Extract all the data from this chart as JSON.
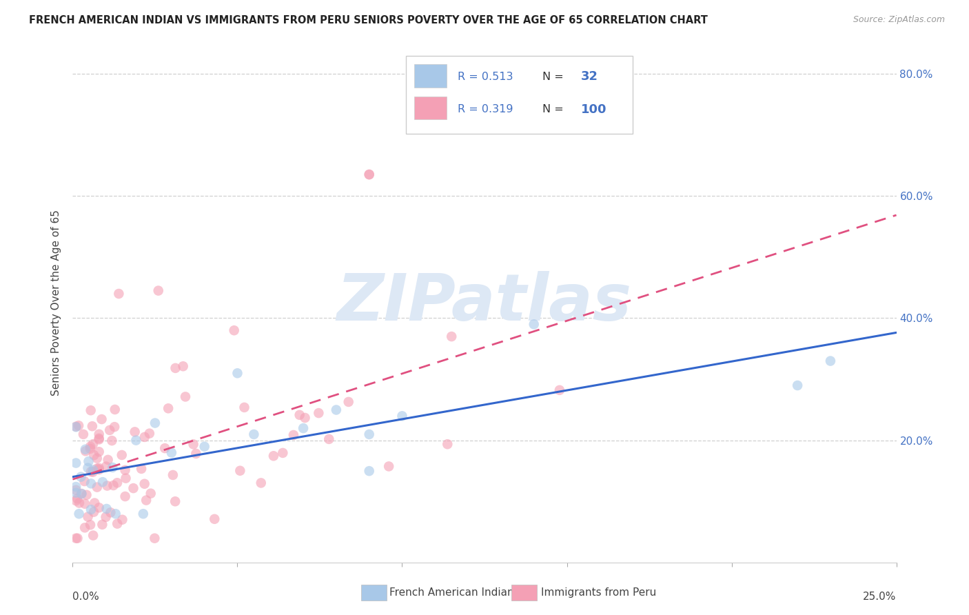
{
  "title": "FRENCH AMERICAN INDIAN VS IMMIGRANTS FROM PERU SENIORS POVERTY OVER THE AGE OF 65 CORRELATION CHART",
  "source": "Source: ZipAtlas.com",
  "ylabel": "Seniors Poverty Over the Age of 65",
  "legend_r1": "R = 0.513",
  "legend_n1": "32",
  "legend_r2": "R = 0.319",
  "legend_n2": "100",
  "legend_label1": "French American Indians",
  "legend_label2": "Immigrants from Peru",
  "color_blue": "#a8c8e8",
  "color_pink": "#f4a0b5",
  "line_color_blue": "#3366cc",
  "line_color_pink": "#e05080",
  "text_blue": "#4472c4",
  "xlim": [
    0.0,
    0.25
  ],
  "ylim": [
    0.0,
    0.85
  ],
  "grid_color": "#d0d0d0",
  "watermark": "ZIPatlas",
  "watermark_color": "#dde8f5"
}
